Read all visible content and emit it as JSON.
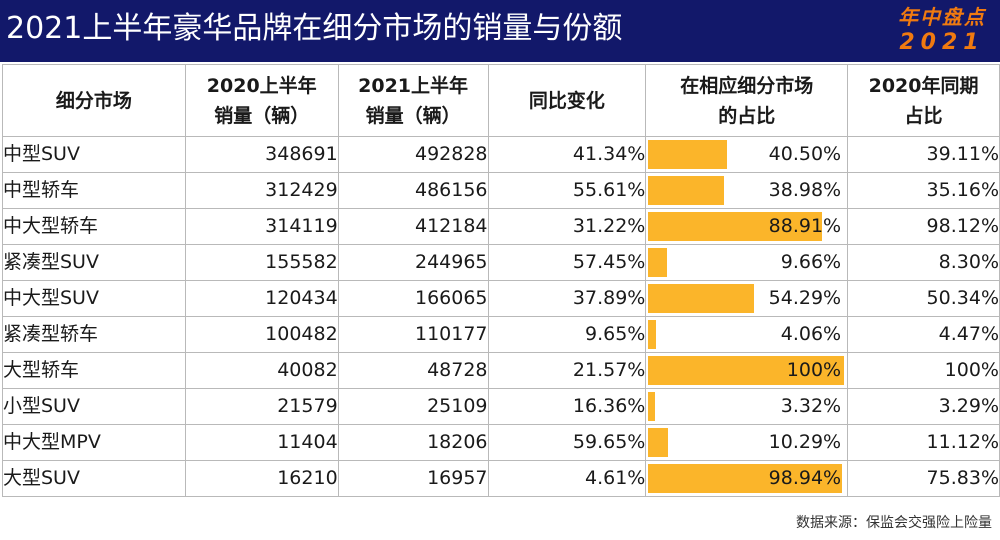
{
  "header": {
    "title": "2021上半年豪华品牌在细分市场的销量与份额",
    "badge_line1": "年中盘点",
    "badge_line2": "2021"
  },
  "colors": {
    "header_bg": "#12186a",
    "badge": "#f07a10",
    "bar": "#fbb52a",
    "prev_text": "#a6a6a6"
  },
  "chart_data": {
    "type": "table",
    "title": "2021上半年豪华品牌在细分市场的销量与份额",
    "columns": [
      {
        "line1": "细分市场",
        "line2": ""
      },
      {
        "line1": "2020上半年",
        "line2": "销量（辆）"
      },
      {
        "line1": "2021上半年",
        "line2": "销量（辆）"
      },
      {
        "line1": "同比变化",
        "line2": ""
      },
      {
        "line1": "在相应细分市场",
        "line2": "的占比"
      },
      {
        "line1": "2020年同期",
        "line2": "占比"
      }
    ],
    "rows": [
      {
        "segment": "中型SUV",
        "sales_2020": "348691",
        "sales_2021": "492828",
        "yoy": "41.34%",
        "share": "40.50%",
        "share_value": 40.5,
        "share_2020": "39.11%"
      },
      {
        "segment": "中型轿车",
        "sales_2020": "312429",
        "sales_2021": "486156",
        "yoy": "55.61%",
        "share": "38.98%",
        "share_value": 38.98,
        "share_2020": "35.16%"
      },
      {
        "segment": "中大型轿车",
        "sales_2020": "314119",
        "sales_2021": "412184",
        "yoy": "31.22%",
        "share": "88.91%",
        "share_value": 88.91,
        "share_2020": "98.12%"
      },
      {
        "segment": "紧凑型SUV",
        "sales_2020": "155582",
        "sales_2021": "244965",
        "yoy": "57.45%",
        "share": "9.66%",
        "share_value": 9.66,
        "share_2020": "8.30%"
      },
      {
        "segment": "中大型SUV",
        "sales_2020": "120434",
        "sales_2021": "166065",
        "yoy": "37.89%",
        "share": "54.29%",
        "share_value": 54.29,
        "share_2020": "50.34%"
      },
      {
        "segment": "紧凑型轿车",
        "sales_2020": "100482",
        "sales_2021": "110177",
        "yoy": "9.65%",
        "share": "4.06%",
        "share_value": 4.06,
        "share_2020": "4.47%"
      },
      {
        "segment": "大型轿车",
        "sales_2020": "40082",
        "sales_2021": "48728",
        "yoy": "21.57%",
        "share": "100%",
        "share_value": 100,
        "share_2020": "100%"
      },
      {
        "segment": "小型SUV",
        "sales_2020": "21579",
        "sales_2021": "25109",
        "yoy": "16.36%",
        "share": "3.32%",
        "share_value": 3.32,
        "share_2020": "3.29%"
      },
      {
        "segment": "中大型MPV",
        "sales_2020": "11404",
        "sales_2021": "18206",
        "yoy": "59.65%",
        "share": "10.29%",
        "share_value": 10.29,
        "share_2020": "11.12%"
      },
      {
        "segment": "大型SUV",
        "sales_2020": "16210",
        "sales_2021": "16957",
        "yoy": "4.61%",
        "share": "98.94%",
        "share_value": 98.94,
        "share_2020": "75.83%"
      }
    ],
    "share_bar_max": 100
  },
  "footer": {
    "source": "数据来源：保监会交强险上险量"
  }
}
